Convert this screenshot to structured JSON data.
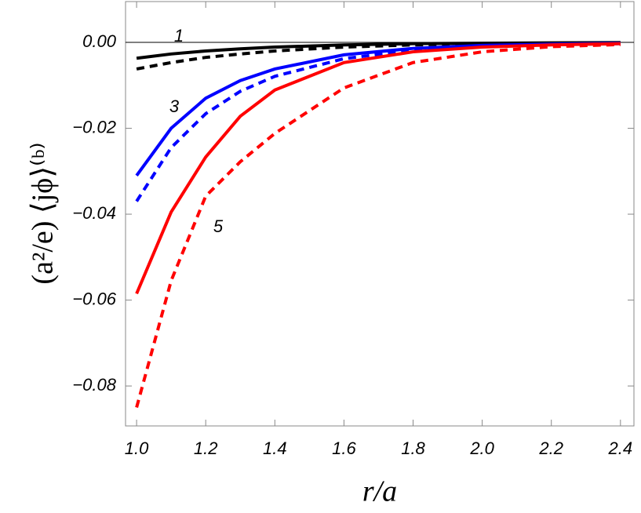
{
  "chart_data": {
    "type": "line",
    "x_label": "r/a",
    "y_label": "(a²/e) ⟨jϕ⟩⁽ᵇ⁾",
    "annotations": [
      "1",
      "3",
      "5"
    ],
    "x": [
      1.0,
      1.1,
      1.2,
      1.3,
      1.4,
      1.6,
      1.8,
      2.0,
      2.2,
      2.4
    ],
    "series": [
      {
        "color": "#000000",
        "dash": false,
        "values": [
          -0.0037,
          -0.0027,
          -0.002,
          -0.0015,
          -0.0011,
          -0.0006,
          -0.0003,
          -0.0002,
          -0.0001,
          -5e-05
        ]
      },
      {
        "color": "#000000",
        "dash": true,
        "values": [
          -0.0062,
          -0.0047,
          -0.0035,
          -0.0027,
          -0.002,
          -0.0011,
          -0.0006,
          -0.0003,
          -0.0002,
          -0.0001
        ]
      },
      {
        "color": "#0000ff",
        "dash": false,
        "values": [
          -0.031,
          -0.02,
          -0.013,
          -0.0089,
          -0.0062,
          -0.0029,
          -0.0014,
          -0.0007,
          -0.0004,
          -0.0002
        ]
      },
      {
        "color": "#0000ff",
        "dash": true,
        "values": [
          -0.037,
          -0.0245,
          -0.0166,
          -0.0114,
          -0.0079,
          -0.0038,
          -0.0018,
          -0.0009,
          -0.0005,
          -0.0003
        ]
      },
      {
        "color": "#ff0000",
        "dash": false,
        "values": [
          -0.0585,
          -0.0395,
          -0.0267,
          -0.0172,
          -0.0111,
          -0.0047,
          -0.0022,
          -0.0011,
          -0.0006,
          -0.0003
        ]
      },
      {
        "color": "#ff0000",
        "dash": true,
        "values": [
          -0.085,
          -0.0555,
          -0.0358,
          -0.0278,
          -0.0212,
          -0.0106,
          -0.0047,
          -0.0022,
          -0.001,
          -0.0005
        ]
      }
    ],
    "xlim": [
      0.968,
      2.439
    ],
    "ylim": [
      -0.0893,
      0.0095
    ],
    "xticks": [
      {
        "value": 1.0,
        "label": "1.0"
      },
      {
        "value": 1.2,
        "label": "1.2"
      },
      {
        "value": 1.4,
        "label": "1.4"
      },
      {
        "value": 1.6,
        "label": "1.6"
      },
      {
        "value": 1.8,
        "label": "1.8"
      },
      {
        "value": 2.0,
        "label": "2.0"
      },
      {
        "value": 2.2,
        "label": "2.2"
      },
      {
        "value": 2.4,
        "label": "2.4"
      }
    ],
    "yticks": [
      {
        "value": 0,
        "label": "0.00"
      },
      {
        "value": -0.02,
        "label": "−0.02"
      },
      {
        "value": -0.04,
        "label": "−0.04"
      },
      {
        "value": -0.06,
        "label": "−0.06"
      },
      {
        "value": -0.08,
        "label": "−0.08"
      }
    ]
  }
}
